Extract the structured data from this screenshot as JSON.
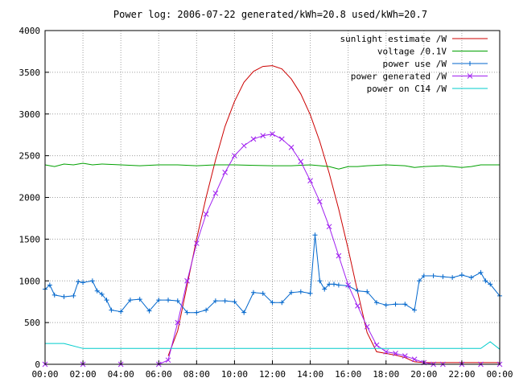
{
  "chart_data": {
    "type": "line",
    "title": "Power log: 2006-07-22 generated/kWh=20.8 used/kWh=20.7",
    "xlabel": "",
    "ylabel": "",
    "xlim": [
      0,
      24
    ],
    "ylim": [
      0,
      4000
    ],
    "grid": true,
    "legend_position": "top-right",
    "x_ticks": [
      "00:00",
      "02:00",
      "04:00",
      "06:00",
      "08:00",
      "10:00",
      "12:00",
      "14:00",
      "16:00",
      "18:00",
      "20:00",
      "22:00",
      "00:00"
    ],
    "y_ticks": [
      "0",
      "500",
      "1000",
      "1500",
      "2000",
      "2500",
      "3000",
      "3500",
      "4000"
    ],
    "series": [
      {
        "name": "sunlight estimate /W",
        "color": "#cc0000",
        "marker": "none",
        "x": [
          6.5,
          7,
          7.5,
          8,
          8.5,
          9,
          9.5,
          10,
          10.5,
          11,
          11.5,
          12,
          12.5,
          13,
          13.5,
          14,
          14.5,
          15,
          15.5,
          16,
          16.5,
          17,
          17.5,
          18,
          18.5,
          19,
          19.5,
          20,
          20.5,
          21,
          21.5,
          22,
          22.5,
          23,
          23.5,
          24
        ],
        "values": [
          100,
          400,
          950,
          1500,
          2000,
          2450,
          2850,
          3150,
          3380,
          3510,
          3570,
          3580,
          3540,
          3420,
          3240,
          2990,
          2670,
          2290,
          1860,
          1380,
          870,
          380,
          150,
          130,
          110,
          80,
          30,
          20,
          20,
          20,
          20,
          20,
          20,
          20,
          20,
          20
        ]
      },
      {
        "name": "voltage /0.1V",
        "color": "#00a000",
        "marker": "none",
        "x": [
          0,
          0.5,
          1,
          1.5,
          2,
          2.5,
          3,
          4,
          5,
          6,
          7,
          8,
          9,
          10,
          11,
          12,
          13,
          14,
          15,
          15.5,
          16,
          16.5,
          17,
          18,
          19,
          19.5,
          20,
          21,
          22,
          22.5,
          23,
          24
        ],
        "values": [
          2390,
          2370,
          2400,
          2390,
          2410,
          2390,
          2400,
          2390,
          2380,
          2390,
          2390,
          2380,
          2390,
          2390,
          2385,
          2380,
          2380,
          2390,
          2370,
          2340,
          2370,
          2370,
          2380,
          2390,
          2380,
          2360,
          2370,
          2380,
          2360,
          2370,
          2390,
          2390
        ]
      },
      {
        "name": "power use /W",
        "color": "#0066cc",
        "marker": "plus",
        "x": [
          0,
          0.25,
          0.5,
          1,
          1.5,
          1.75,
          2,
          2.5,
          2.75,
          3,
          3.25,
          3.5,
          4,
          4.5,
          5,
          5.5,
          6,
          6.5,
          7,
          7.5,
          8,
          8.5,
          9,
          9.5,
          10,
          10.5,
          11,
          11.5,
          12,
          12.5,
          13,
          13.5,
          14,
          14.25,
          14.5,
          14.75,
          15,
          15.25,
          15.5,
          16,
          16.5,
          17,
          17.5,
          18,
          18.5,
          19,
          19.5,
          19.75,
          20,
          20.5,
          21,
          21.5,
          22,
          22.5,
          23,
          23.25,
          23.5,
          24
        ],
        "values": [
          900,
          950,
          830,
          810,
          820,
          990,
          980,
          1000,
          880,
          840,
          770,
          650,
          630,
          770,
          780,
          640,
          770,
          770,
          760,
          620,
          620,
          650,
          760,
          760,
          750,
          620,
          860,
          850,
          740,
          740,
          860,
          870,
          850,
          1550,
          1000,
          900,
          960,
          960,
          950,
          940,
          880,
          870,
          740,
          710,
          720,
          720,
          650,
          1000,
          1060,
          1060,
          1050,
          1040,
          1070,
          1040,
          1100,
          1000,
          960,
          820
        ]
      },
      {
        "name": "power generated /W",
        "color": "#a020f0",
        "marker": "x",
        "x": [
          0,
          2,
          4,
          6,
          6.5,
          7,
          7.5,
          8,
          8.5,
          9,
          9.5,
          10,
          10.5,
          11,
          11.5,
          12,
          12.5,
          13,
          13.5,
          14,
          14.5,
          15,
          15.5,
          16,
          16.5,
          17,
          17.5,
          18,
          18.5,
          19,
          19.5,
          20,
          20.5,
          21,
          22,
          23,
          24
        ],
        "values": [
          0,
          0,
          0,
          0,
          50,
          500,
          1000,
          1450,
          1800,
          2050,
          2300,
          2500,
          2620,
          2700,
          2740,
          2760,
          2700,
          2600,
          2430,
          2200,
          1950,
          1650,
          1300,
          950,
          700,
          450,
          230,
          150,
          130,
          100,
          60,
          20,
          0,
          0,
          0,
          0,
          0
        ]
      },
      {
        "name": "power on C14 /W",
        "color": "#00cccc",
        "marker": "none",
        "x": [
          0,
          1,
          2,
          3,
          4,
          5,
          6,
          7,
          8,
          9,
          10,
          11,
          12,
          13,
          14,
          15,
          16,
          17,
          18,
          19,
          20,
          21,
          22,
          23,
          23.5,
          24
        ],
        "values": [
          250,
          250,
          190,
          190,
          190,
          190,
          190,
          190,
          190,
          190,
          190,
          190,
          190,
          190,
          190,
          190,
          190,
          190,
          190,
          190,
          190,
          190,
          190,
          190,
          270,
          180
        ]
      }
    ]
  }
}
